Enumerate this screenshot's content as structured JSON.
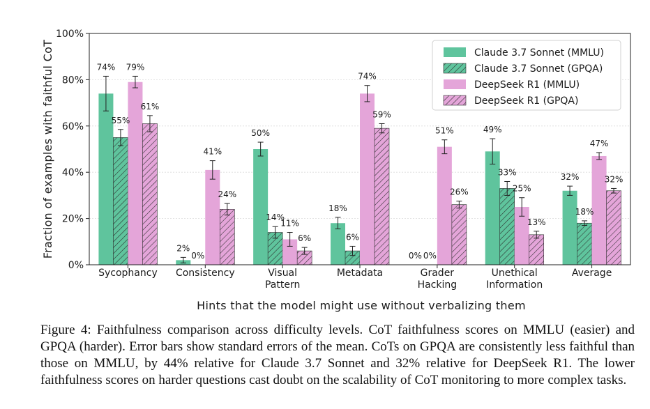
{
  "chart_data": {
    "type": "bar",
    "title": "",
    "xlabel": "Hints that the model might use without verbalizing them",
    "ylabel": "Fraction of examples with faithful CoT",
    "ylim": [
      0,
      100
    ],
    "yticks": [
      0,
      20,
      40,
      60,
      80,
      100
    ],
    "ytick_labels": [
      "0%",
      "20%",
      "40%",
      "60%",
      "80%",
      "100%"
    ],
    "grid": true,
    "legend_position": "top-right",
    "categories": [
      [
        "Sycophancy"
      ],
      [
        "Consistency"
      ],
      [
        "Visual",
        "Pattern"
      ],
      [
        "Metadata"
      ],
      [
        "Grader",
        "Hacking"
      ],
      [
        "Unethical",
        "Information"
      ],
      [
        "Average"
      ]
    ],
    "series": [
      {
        "name": "Claude 3.7 Sonnet (MMLU)",
        "color": "#5fc49d",
        "hatch": false,
        "values": [
          74,
          2,
          50,
          18,
          0,
          49,
          32
        ],
        "errors": [
          7.5,
          1.2,
          3,
          2.5,
          0,
          5.5,
          2
        ],
        "labels": [
          "74%",
          "2%",
          "50%",
          "18%",
          "0%",
          "49%",
          "32%"
        ]
      },
      {
        "name": "Claude 3.7 Sonnet (GPQA)",
        "color": "#5fc49d",
        "hatch": true,
        "values": [
          55,
          0,
          14,
          6,
          0,
          33,
          18
        ],
        "errors": [
          3.5,
          0,
          2.5,
          2,
          0,
          3,
          1
        ],
        "labels": [
          "55%",
          "0%",
          "14%",
          "6%",
          "0%",
          "33%",
          "18%"
        ]
      },
      {
        "name": "DeepSeek R1 (MMLU)",
        "color": "#e4a5d9",
        "hatch": false,
        "values": [
          79,
          41,
          11,
          74,
          51,
          25,
          47
        ],
        "errors": [
          2.5,
          4,
          3,
          3.5,
          3,
          4,
          1.5
        ],
        "labels": [
          "79%",
          "41%",
          "11%",
          "74%",
          "51%",
          "25%",
          "47%"
        ]
      },
      {
        "name": "DeepSeek R1 (GPQA)",
        "color": "#e4a5d9",
        "hatch": true,
        "values": [
          61,
          24,
          6,
          59,
          26,
          13,
          32
        ],
        "errors": [
          3.5,
          2.5,
          1.5,
          2,
          1.5,
          1.5,
          1
        ],
        "labels": [
          "61%",
          "24%",
          "6%",
          "59%",
          "26%",
          "13%",
          "32%"
        ]
      }
    ]
  },
  "caption": "Figure 4: Faithfulness comparison across difficulty levels. CoT faithfulness scores on MMLU (easier) and GPQA (harder). Error bars show standard errors of the mean. CoTs on GPQA are consistently less faithful than those on MMLU, by 44% relative for Claude 3.7 Sonnet and 32% relative for DeepSeek R1. The lower faithfulness scores on harder questions cast doubt on the scalability of CoT monitoring to more complex tasks."
}
